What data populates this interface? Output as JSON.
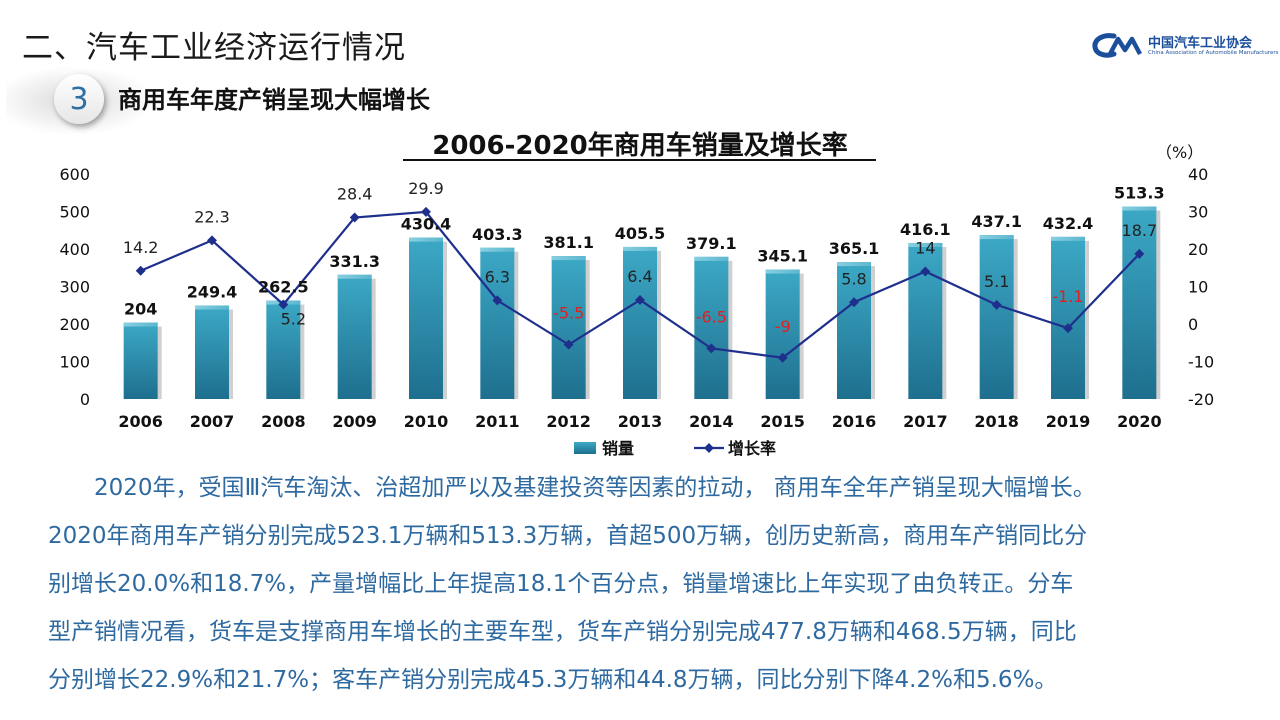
{
  "header": {
    "section_title": "二、汽车工业经济运行情况",
    "logo_cn": "中国汽车工业协会",
    "logo_en": "China Association of Automobile Manufacturers",
    "badge_number": "3",
    "subtitle": "商用车年度产销呈现大幅增长"
  },
  "chart_data": {
    "type": "bar",
    "title": "2006-2020年商用车销量及增长率",
    "categories": [
      "2006",
      "2007",
      "2008",
      "2009",
      "2010",
      "2011",
      "2012",
      "2013",
      "2014",
      "2015",
      "2016",
      "2017",
      "2018",
      "2019",
      "2020"
    ],
    "series": [
      {
        "name": "销量",
        "type": "bar",
        "axis": "left",
        "values": [
          204,
          249.4,
          262.5,
          331.3,
          430.4,
          403.3,
          381.1,
          405.5,
          379.1,
          345.1,
          365.1,
          416.1,
          437.1,
          432.4,
          513.3
        ],
        "labels": [
          "204",
          "249.4",
          "262.5",
          "331.3",
          "430.4",
          "403.3",
          "381.1",
          "405.5",
          "379.1",
          "345.1",
          "365.1",
          "416.1",
          "437.1",
          "432.4",
          "513.3"
        ]
      },
      {
        "name": "增长率",
        "type": "line",
        "axis": "right",
        "values": [
          14.2,
          22.3,
          5.2,
          28.4,
          29.9,
          6.3,
          -5.5,
          6.4,
          -6.5,
          -9,
          5.8,
          14,
          5.1,
          -1.1,
          18.7
        ],
        "labels": [
          "14.2",
          "22.3",
          "5.2",
          "28.4",
          "29.9",
          "6.3",
          "-5.5",
          "6.4",
          "-6.5",
          "-9",
          "5.8",
          "14",
          "5.1",
          "-1.1",
          "18.7"
        ]
      }
    ],
    "ylim_left": [
      0,
      600
    ],
    "yticks_left": [
      "0",
      "100",
      "200",
      "300",
      "400",
      "500",
      "600"
    ],
    "ylim_right": [
      -20,
      40
    ],
    "yticks_right": [
      "-20",
      "-10",
      "0",
      "10",
      "20",
      "30",
      "40"
    ],
    "ylabel_right": "（%）",
    "legend_position": "bottom",
    "colors": {
      "bar": "#2a93b1",
      "line": "#1f2f8c",
      "negative_label": "#e02020"
    }
  },
  "paragraph": {
    "line1": "2020年，受国Ⅲ汽车淘汰、治超加严以及基建投资等因素的拉动， 商用车全年产销呈现大幅增长。",
    "line2": "2020年商用车产销分别完成523.1万辆和513.3万辆，首超500万辆，创历史新高，商用车产销同比分",
    "line3": "别增长20.0%和18.7%，产量增幅比上年提高18.1个百分点，销量增速比上年实现了由负转正。分车",
    "line4": "型产销情况看，货车是支撑商用车增长的主要车型，货车产销分别完成477.8万辆和468.5万辆，同比",
    "line5": "分别增长22.9%和21.7%；客车产销分别完成45.3万辆和44.8万辆，同比分别下降4.2%和5.6%。"
  }
}
